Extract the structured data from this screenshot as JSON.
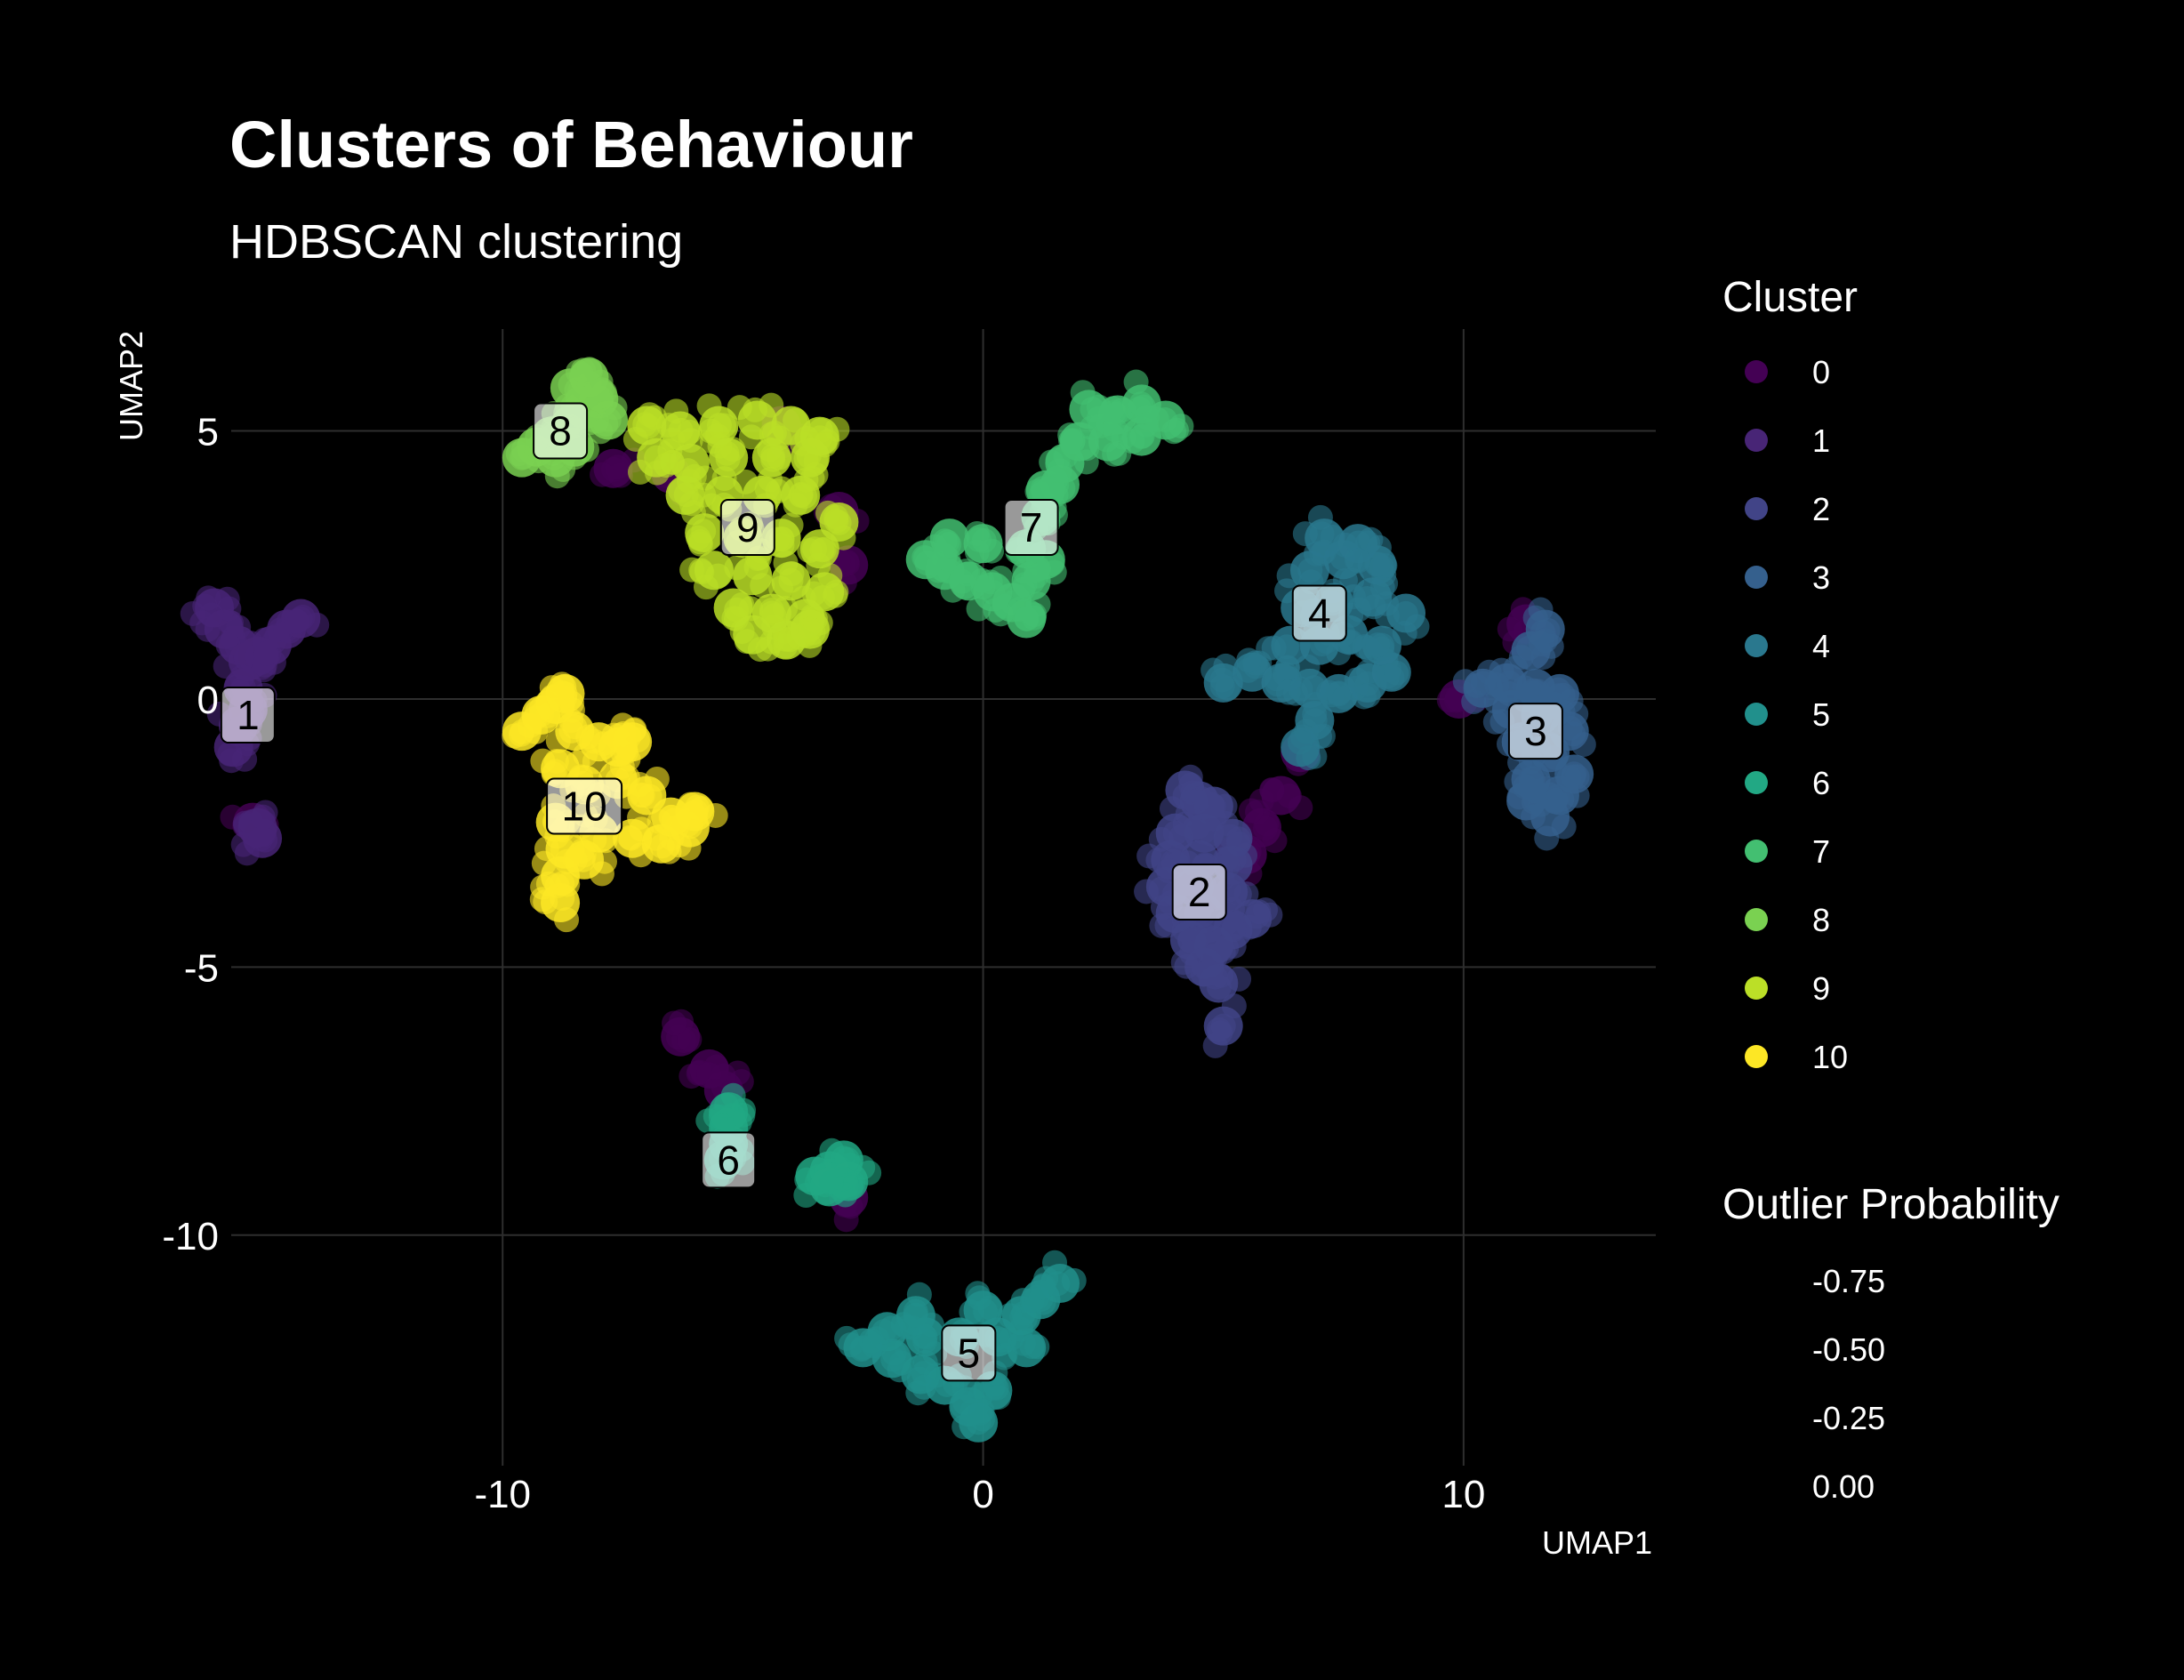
{
  "title": "Clusters of Behaviour",
  "subtitle": "HDBSCAN clustering",
  "chart_data": {
    "type": "scatter",
    "title": "Clusters of Behaviour",
    "subtitle": "HDBSCAN clustering",
    "xlabel": "UMAP1",
    "ylabel": "UMAP2",
    "xlim": [
      -17.5,
      14
    ],
    "ylim": [
      -14.3,
      6.9
    ],
    "xticks": [
      -10,
      0,
      10
    ],
    "xtick_labels": [
      "-10",
      "0",
      "10"
    ],
    "yticks": [
      5,
      0,
      -5,
      -10
    ],
    "ytick_labels": [
      "5",
      "0",
      "-5",
      "-10"
    ],
    "grid": true,
    "legend_placement": "right",
    "legend": {
      "cluster_title": "Cluster",
      "clusters": [
        {
          "label": "0",
          "color": "#440154"
        },
        {
          "label": "1",
          "color": "#482576"
        },
        {
          "label": "2",
          "color": "#414487"
        },
        {
          "label": "3",
          "color": "#35608D"
        },
        {
          "label": "4",
          "color": "#2A788E"
        },
        {
          "label": "5",
          "color": "#21908C"
        },
        {
          "label": "6",
          "color": "#22A884"
        },
        {
          "label": "7",
          "color": "#43BF71"
        },
        {
          "label": "8",
          "color": "#7AD151"
        },
        {
          "label": "9",
          "color": "#BBDF27"
        },
        {
          "label": "10",
          "color": "#FDE725"
        }
      ],
      "outlier_title": "Outlier Probability",
      "outlier_labels": [
        "-0.75",
        "-0.50",
        "-0.25",
        "0.00"
      ]
    },
    "cluster_labels": [
      {
        "label": "1",
        "x": -15.3,
        "y": -0.3
      },
      {
        "label": "2",
        "x": 4.5,
        "y": -3.6
      },
      {
        "label": "3",
        "x": 11.5,
        "y": -0.6
      },
      {
        "label": "4",
        "x": 7.0,
        "y": 1.6
      },
      {
        "label": "5",
        "x": -0.3,
        "y": -12.2
      },
      {
        "label": "6",
        "x": -5.3,
        "y": -8.6
      },
      {
        "label": "7",
        "x": 1.0,
        "y": 3.2
      },
      {
        "label": "8",
        "x": -8.8,
        "y": 5.0
      },
      {
        "label": "9",
        "x": -4.9,
        "y": 3.2
      },
      {
        "label": "10",
        "x": -8.3,
        "y": -2.0
      }
    ],
    "series": [
      {
        "name": "0",
        "color": "#440154",
        "points": [
          [
            -3,
            3.5
          ],
          [
            -2.8,
            2.5
          ],
          [
            -7.7,
            4.3
          ],
          [
            -6.5,
            4.2
          ],
          [
            -4.2,
            5.1
          ],
          [
            -6.3,
            -6.3
          ],
          [
            -5.7,
            -6.9
          ],
          [
            -5.4,
            -7.3
          ],
          [
            -2.8,
            -9.3
          ],
          [
            6.2,
            -1.8
          ],
          [
            5.8,
            -2.4
          ],
          [
            5.5,
            -2.9
          ],
          [
            6.6,
            -1.0
          ],
          [
            9.9,
            0.0
          ],
          [
            11.3,
            1.4
          ],
          [
            -15.2,
            -2.3
          ]
        ]
      },
      {
        "name": "1",
        "color": "#482576",
        "points": [
          [
            -16,
            1.7
          ],
          [
            -15.8,
            1.3
          ],
          [
            -15.5,
            1.0
          ],
          [
            -15.3,
            0.7
          ],
          [
            -15.1,
            0.8
          ],
          [
            -14.8,
            1.0
          ],
          [
            -14.5,
            1.3
          ],
          [
            -14.2,
            1.5
          ],
          [
            -15.4,
            0.2
          ],
          [
            -15.3,
            -0.2
          ],
          [
            -15.5,
            -0.5
          ],
          [
            -15.6,
            -0.9
          ],
          [
            -15.1,
            -2.4
          ],
          [
            -15.0,
            -2.6
          ]
        ]
      },
      {
        "name": "2",
        "color": "#414487",
        "points": [
          [
            4.2,
            -1.7
          ],
          [
            4.5,
            -1.9
          ],
          [
            4.8,
            -2.0
          ],
          [
            4.0,
            -2.5
          ],
          [
            4.6,
            -2.5
          ],
          [
            5.2,
            -2.6
          ],
          [
            3.9,
            -3.0
          ],
          [
            4.5,
            -3.0
          ],
          [
            5.2,
            -3.1
          ],
          [
            3.8,
            -3.5
          ],
          [
            4.4,
            -3.5
          ],
          [
            5.1,
            -3.6
          ],
          [
            5.6,
            -4.1
          ],
          [
            4.0,
            -4.0
          ],
          [
            4.6,
            -4.0
          ],
          [
            5.2,
            -4.3
          ],
          [
            4.3,
            -4.5
          ],
          [
            4.8,
            -4.6
          ],
          [
            4.6,
            -5.0
          ],
          [
            4.9,
            -5.3
          ],
          [
            5.0,
            -6.1
          ]
        ]
      },
      {
        "name": "3",
        "color": "#35608D",
        "points": [
          [
            10.4,
            0.2
          ],
          [
            10.9,
            0.3
          ],
          [
            11.5,
            0.2
          ],
          [
            12.0,
            0.1
          ],
          [
            11.4,
            0.9
          ],
          [
            11.7,
            1.3
          ],
          [
            11.0,
            -0.2
          ],
          [
            11.6,
            -0.3
          ],
          [
            12.2,
            -0.6
          ],
          [
            11.2,
            -0.8
          ],
          [
            11.8,
            -1.0
          ],
          [
            12.3,
            -1.4
          ],
          [
            11.4,
            -1.5
          ],
          [
            12.0,
            -1.8
          ],
          [
            11.8,
            -2.2
          ],
          [
            11.3,
            -1.9
          ]
        ]
      },
      {
        "name": "4",
        "color": "#2A788E",
        "points": [
          [
            5.0,
            0.3
          ],
          [
            5.6,
            0.5
          ],
          [
            6.2,
            0.3
          ],
          [
            6.8,
            0.2
          ],
          [
            7.4,
            0.1
          ],
          [
            8.0,
            0.3
          ],
          [
            8.5,
            0.5
          ],
          [
            6.4,
            1.0
          ],
          [
            7.0,
            1.0
          ],
          [
            7.6,
            1.2
          ],
          [
            8.3,
            1.0
          ],
          [
            6.6,
            1.7
          ],
          [
            7.3,
            1.8
          ],
          [
            8.1,
            1.9
          ],
          [
            8.8,
            1.6
          ],
          [
            6.8,
            2.4
          ],
          [
            7.5,
            2.6
          ],
          [
            8.2,
            2.5
          ],
          [
            7.1,
            3.0
          ],
          [
            7.8,
            2.9
          ],
          [
            6.9,
            -0.4
          ],
          [
            6.6,
            -0.9
          ]
        ]
      },
      {
        "name": "5",
        "color": "#21908C",
        "points": [
          [
            -2.5,
            -12.1
          ],
          [
            -1.9,
            -12.3
          ],
          [
            -1.3,
            -12.6
          ],
          [
            -0.8,
            -12.8
          ],
          [
            -0.3,
            -13.2
          ],
          [
            0.2,
            -12.9
          ],
          [
            -2.0,
            -11.8
          ],
          [
            -1.2,
            -11.9
          ],
          [
            -0.5,
            -11.9
          ],
          [
            0.3,
            -11.9
          ],
          [
            0.9,
            -12.1
          ],
          [
            0.0,
            -11.4
          ],
          [
            0.8,
            -11.5
          ],
          [
            1.2,
            -11.2
          ],
          [
            1.6,
            -10.9
          ],
          [
            -0.1,
            -13.5
          ],
          [
            -1.4,
            -11.5
          ]
        ]
      },
      {
        "name": "6",
        "color": "#22A884",
        "points": [
          [
            -5.3,
            -7.7
          ],
          [
            -5.3,
            -8.0
          ],
          [
            -5.3,
            -8.3
          ],
          [
            -5.4,
            -8.6
          ],
          [
            -3.5,
            -8.9
          ],
          [
            -3.2,
            -8.8
          ],
          [
            -2.9,
            -8.6
          ],
          [
            -2.8,
            -9.0
          ],
          [
            -3.2,
            -9.1
          ]
        ]
      },
      {
        "name": "7",
        "color": "#43BF71",
        "points": [
          [
            -1.2,
            2.6
          ],
          [
            -0.8,
            2.4
          ],
          [
            -0.3,
            2.2
          ],
          [
            0.2,
            2.0
          ],
          [
            0.6,
            1.8
          ],
          [
            0.9,
            1.5
          ],
          [
            1.0,
            2.2
          ],
          [
            -0.7,
            3.0
          ],
          [
            0.0,
            2.9
          ],
          [
            0.9,
            2.8
          ],
          [
            1.3,
            2.6
          ],
          [
            1.2,
            3.4
          ],
          [
            1.3,
            3.9
          ],
          [
            1.7,
            4.4
          ],
          [
            2.0,
            4.8
          ],
          [
            2.2,
            5.4
          ],
          [
            2.8,
            5.3
          ],
          [
            3.3,
            5.5
          ],
          [
            3.8,
            5.2
          ],
          [
            2.6,
            4.8
          ],
          [
            3.3,
            4.9
          ],
          [
            1.6,
            4.0
          ]
        ]
      },
      {
        "name": "8",
        "color": "#7AD151",
        "points": [
          [
            -9.6,
            4.5
          ],
          [
            -9.3,
            4.7
          ],
          [
            -9.0,
            4.9
          ],
          [
            -8.6,
            5.1
          ],
          [
            -8.3,
            5.4
          ],
          [
            -8.0,
            5.6
          ],
          [
            -8.6,
            5.8
          ],
          [
            -8.2,
            6.0
          ],
          [
            -8.9,
            4.5
          ],
          [
            -8.5,
            4.7
          ],
          [
            -7.8,
            5.2
          ]
        ]
      },
      {
        "name": "9",
        "color": "#BBDF27",
        "points": [
          [
            -7.0,
            5.1
          ],
          [
            -6.3,
            5.0
          ],
          [
            -5.5,
            5.1
          ],
          [
            -4.7,
            5.2
          ],
          [
            -4.0,
            5.1
          ],
          [
            -3.4,
            4.9
          ],
          [
            -6.8,
            4.5
          ],
          [
            -6.1,
            4.4
          ],
          [
            -5.3,
            4.5
          ],
          [
            -4.4,
            4.5
          ],
          [
            -3.6,
            4.5
          ],
          [
            -6.2,
            3.8
          ],
          [
            -5.4,
            3.8
          ],
          [
            -4.6,
            3.8
          ],
          [
            -3.8,
            3.8
          ],
          [
            -3.0,
            3.3
          ],
          [
            -5.8,
            3.1
          ],
          [
            -5.0,
            3.0
          ],
          [
            -4.2,
            3.0
          ],
          [
            -3.4,
            2.8
          ],
          [
            -5.6,
            2.4
          ],
          [
            -4.8,
            2.3
          ],
          [
            -4.0,
            2.2
          ],
          [
            -3.3,
            2.0
          ],
          [
            -5.2,
            1.7
          ],
          [
            -4.4,
            1.6
          ],
          [
            -3.7,
            1.5
          ],
          [
            -4.8,
            1.2
          ],
          [
            -4.1,
            1.1
          ],
          [
            -3.6,
            1.3
          ]
        ]
      },
      {
        "name": "10",
        "color": "#FDE725",
        "points": [
          [
            -9.6,
            -0.6
          ],
          [
            -9.2,
            -0.3
          ],
          [
            -8.9,
            -0.1
          ],
          [
            -8.7,
            0.1
          ],
          [
            -8.5,
            -0.6
          ],
          [
            -8.0,
            -0.8
          ],
          [
            -7.6,
            -0.9
          ],
          [
            -7.3,
            -0.8
          ],
          [
            -8.8,
            -1.3
          ],
          [
            -8.3,
            -1.6
          ],
          [
            -7.6,
            -1.5
          ],
          [
            -7.0,
            -1.8
          ],
          [
            -6.5,
            -2.2
          ],
          [
            -6.1,
            -2.4
          ],
          [
            -6.0,
            -2.1
          ],
          [
            -6.7,
            -2.7
          ],
          [
            -7.3,
            -2.6
          ],
          [
            -8.0,
            -2.5
          ],
          [
            -8.9,
            -2.3
          ],
          [
            -8.7,
            -2.8
          ],
          [
            -8.8,
            -3.3
          ],
          [
            -8.8,
            -3.8
          ],
          [
            -8.3,
            -3.0
          ]
        ]
      }
    ]
  }
}
